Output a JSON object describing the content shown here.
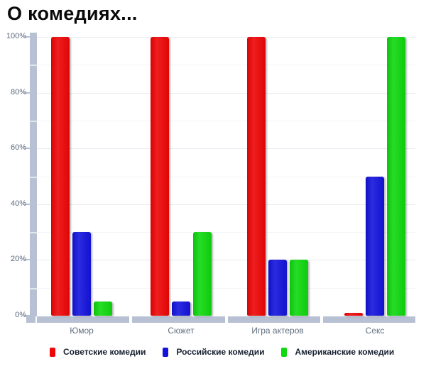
{
  "title": "О комедиях...",
  "chart_data": {
    "type": "bar",
    "title": "О комедиях...",
    "categories": [
      "Юмор",
      "Сюжет",
      "Игра актеров",
      "Секс"
    ],
    "series": [
      {
        "name": "Советские комедии",
        "color": "#ee0505",
        "values": [
          100,
          100,
          100,
          1
        ]
      },
      {
        "name": "Российские комедии",
        "color": "#1313dd",
        "values": [
          30,
          5,
          20,
          50
        ]
      },
      {
        "name": "Американские комедии",
        "color": "#0ed80e",
        "values": [
          5,
          30,
          20,
          100
        ]
      }
    ],
    "y_axis": {
      "ticks": [
        "0%",
        "20%",
        "40%",
        "60%",
        "80%",
        "100%"
      ],
      "min": 0,
      "max": 100,
      "major_step": 20,
      "minor_step": 10
    },
    "xlabel": "",
    "ylabel": "",
    "grid": true,
    "legend_position": "bottom"
  },
  "style": {
    "axis_color": "#b7c1d3",
    "grid_major_color": "#e8ebf0",
    "grid_minor_color": "#f4f5f8",
    "tick_label_color": "#5d6b7d",
    "category_label_color": "#62707f",
    "legend_text_color": "#172030",
    "title_color": "#0a0a0a",
    "background": "#ffffff"
  }
}
